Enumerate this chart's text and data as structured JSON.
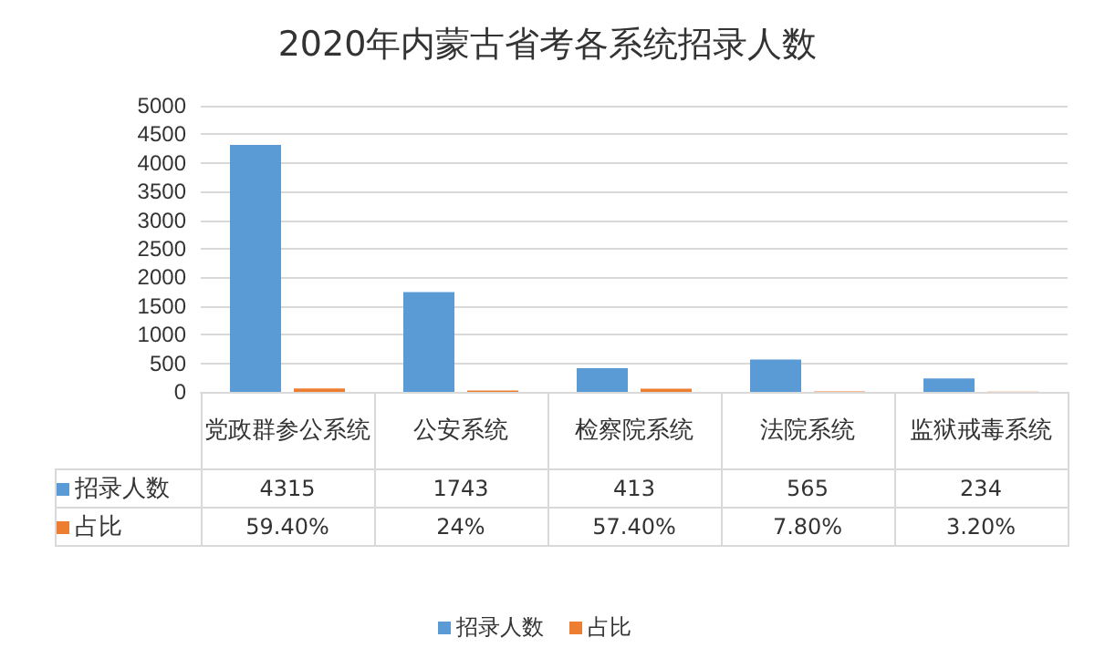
{
  "chart_data": {
    "type": "bar",
    "title": "2020年内蒙古省考各系统招录人数",
    "categories": [
      "党政群参公系统",
      "公安系统",
      "检察院系统",
      "法院系统",
      "监狱戒毒系统"
    ],
    "series": [
      {
        "name": "招录人数",
        "color": "#5b9bd5",
        "values": [
          4315,
          1743,
          413,
          565,
          234
        ],
        "value_labels": [
          "4315",
          "1743",
          "413",
          "565",
          "234"
        ]
      },
      {
        "name": "占比",
        "color": "#ed7d31",
        "values": [
          59.4,
          24,
          57.4,
          7.8,
          3.2
        ],
        "value_labels": [
          "59.40%",
          "24%",
          "57.40%",
          "7.80%",
          "3.20%"
        ]
      }
    ],
    "ylim": [
      0,
      5000
    ],
    "yticks": [
      0,
      500,
      1000,
      1500,
      2000,
      2500,
      3000,
      3500,
      4000,
      4500,
      5000
    ],
    "grid": "y",
    "legend": "bottom"
  }
}
